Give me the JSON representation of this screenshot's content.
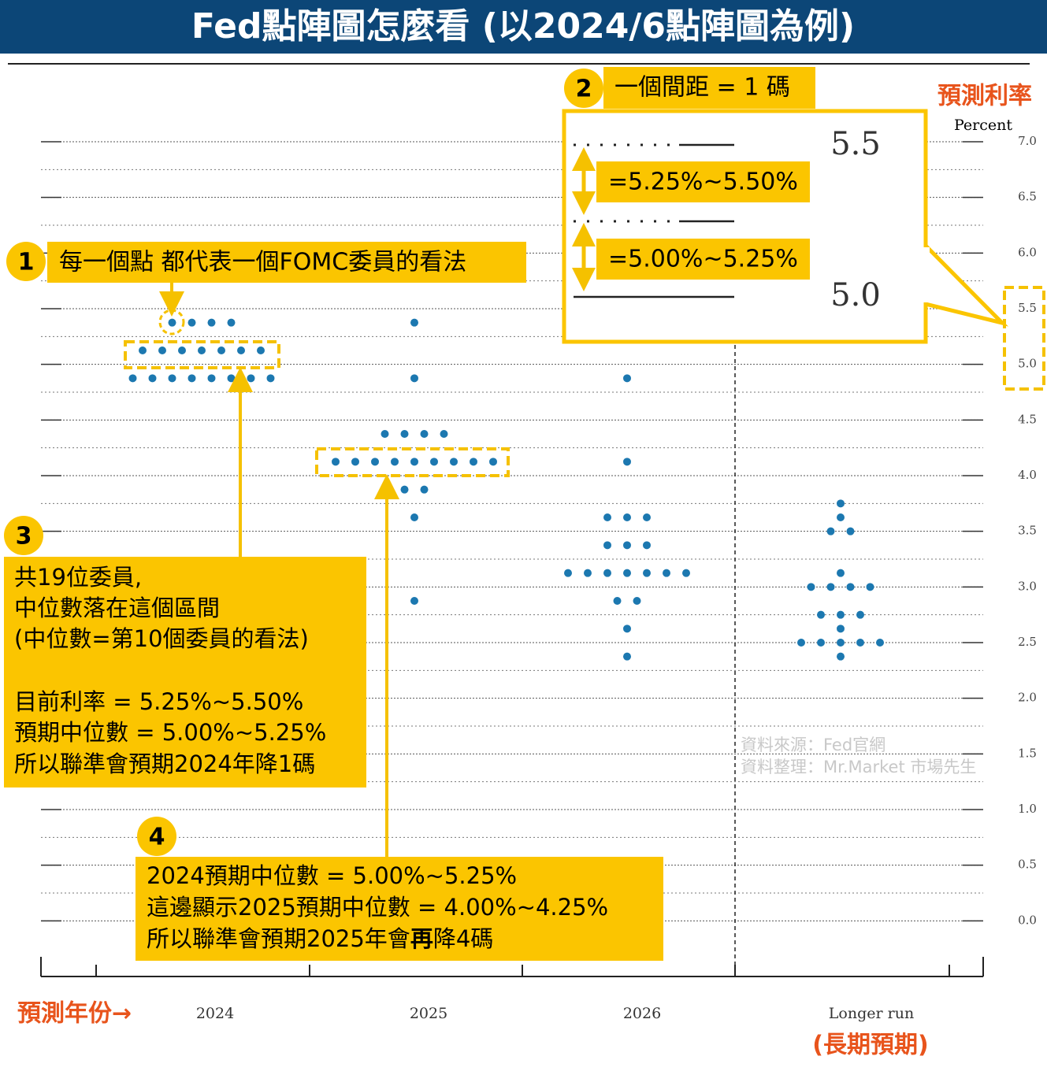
{
  "chart_data": {
    "type": "dot",
    "title": "Fed點陣圖怎麼看 (以2024/6點陣圖為例)",
    "y_label": "Percent",
    "y_annotation": "預測利率",
    "x_annotation": "預測年份→",
    "longer_run_note": "(長期預期)",
    "color": "#1c78b0",
    "grid": true,
    "categories": [
      "2024",
      "2025",
      "2026",
      "Longer run"
    ],
    "values": [
      [
        5.375,
        5.375,
        5.375,
        5.375,
        5.125,
        5.125,
        5.125,
        5.125,
        5.125,
        5.125,
        5.125,
        4.875,
        4.875,
        4.875,
        4.875,
        4.875,
        4.875,
        4.875,
        4.875
      ],
      [
        5.375,
        4.875,
        4.375,
        4.375,
        4.375,
        4.375,
        4.125,
        4.125,
        4.125,
        4.125,
        4.125,
        4.125,
        4.125,
        4.125,
        4.125,
        3.875,
        3.875,
        3.625,
        2.875
      ],
      [
        4.875,
        4.125,
        3.625,
        3.625,
        3.625,
        3.375,
        3.375,
        3.375,
        3.125,
        3.125,
        3.125,
        3.125,
        3.125,
        3.125,
        3.125,
        2.875,
        2.875,
        2.625,
        2.375
      ],
      [
        3.75,
        3.625,
        3.5,
        3.5,
        3.125,
        3.0,
        3.0,
        3.0,
        3.0,
        2.75,
        2.75,
        2.75,
        2.625,
        2.5,
        2.5,
        2.5,
        2.5,
        2.5,
        2.375
      ]
    ],
    "ylim": [
      -0.5,
      7.0
    ],
    "yticks": [
      {
        "value": 0,
        "label": "0.0"
      },
      {
        "value": 0.5,
        "label": "0.5"
      },
      {
        "value": 1,
        "label": "1.0"
      },
      {
        "value": 1.5,
        "label": "1.5"
      },
      {
        "value": 2,
        "label": "2.0"
      },
      {
        "value": 2.5,
        "label": "2.5"
      },
      {
        "value": 3,
        "label": "3.0"
      },
      {
        "value": 3.5,
        "label": "3.5"
      },
      {
        "value": 4,
        "label": "4.0"
      },
      {
        "value": 4.5,
        "label": "4.5"
      },
      {
        "value": 5,
        "label": "5.0"
      },
      {
        "value": 5.5,
        "label": "5.5"
      },
      {
        "value": 6,
        "label": "6.0"
      },
      {
        "value": 6.5,
        "label": "6.5"
      },
      {
        "value": 7,
        "label": "7.0"
      }
    ]
  },
  "source": [
    "資料來源：Fed官網",
    "資料整理：Mr.Market 市場先生"
  ],
  "callouts": [
    {
      "number": "1",
      "lines": [
        "每一個點 都代表一個FOMC委員的看法"
      ]
    },
    {
      "number": "2",
      "lines": [
        "一個間距 = 1 碼"
      ],
      "upper": "5.5",
      "upper_range": "=5.25%~5.50%",
      "lower_range": "=5.00%~5.25%",
      "lower": "5.0"
    },
    {
      "number": "3",
      "lines": [
        "共19位委員,",
        "中位數落在這個區間",
        "(中位數=第10個委員的看法)",
        "目前利率 = 5.25%~5.50%",
        "預期中位數 = 5.00%~5.25%",
        "所以聯準會預期2024年降1碼"
      ]
    },
    {
      "number": "4",
      "lines": [
        "2024預期中位數 = 5.00%~5.25%",
        "這邊顯示2025預期中位數 = 4.00%~4.25%",
        "所以聯準會預期2025年會"
      ],
      "emphasis": "再",
      "tail": "降4碼"
    }
  ]
}
